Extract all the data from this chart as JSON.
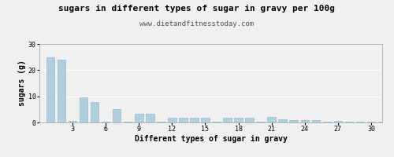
{
  "title": "sugars in different types of sugar in gravy per 100g",
  "subtitle": "www.dietandfitnesstoday.com",
  "xlabel": "Different types of sugar in gravy",
  "ylabel": "sugars (g)",
  "bar_color": "#aecfdb",
  "bar_edge_color": "#88afc0",
  "background_color": "#f0f0f0",
  "plot_bg_color": "#f0f0f0",
  "ylim": [
    0,
    30
  ],
  "yticks": [
    0,
    10,
    20,
    30
  ],
  "xlim": [
    0.0,
    31.0
  ],
  "xticks": [
    3,
    6,
    9,
    12,
    15,
    18,
    21,
    24,
    27,
    30
  ],
  "title_fontsize": 8,
  "subtitle_fontsize": 6.5,
  "label_fontsize": 7,
  "tick_fontsize": 6,
  "values": [
    25.0,
    24.0,
    0.5,
    9.5,
    7.7,
    0.4,
    5.0,
    0.3,
    3.2,
    3.3,
    0.2,
    1.7,
    1.7,
    1.8,
    1.8,
    0.2,
    1.8,
    1.7,
    1.7,
    0.2,
    2.0,
    1.1,
    1.0,
    0.8,
    0.8,
    0.3,
    0.5,
    0.2,
    0.4,
    0.3,
    0.2
  ]
}
